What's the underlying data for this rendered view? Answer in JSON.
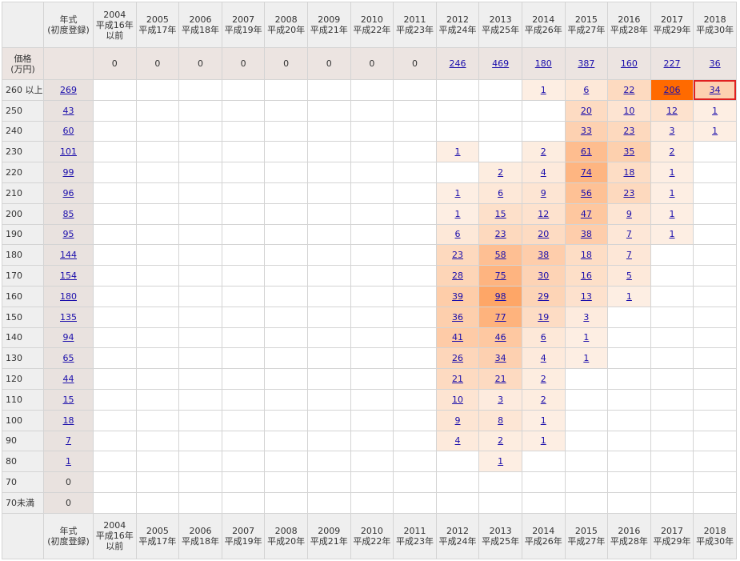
{
  "table": {
    "corner": "",
    "year_label": [
      "年式",
      "(初度登録)"
    ],
    "price_label": [
      "価格",
      "(万円)"
    ],
    "years": [
      [
        "2004",
        "平成16年",
        "以前"
      ],
      [
        "2005",
        "平成17年"
      ],
      [
        "2006",
        "平成18年"
      ],
      [
        "2007",
        "平成19年"
      ],
      [
        "2008",
        "平成20年"
      ],
      [
        "2009",
        "平成21年"
      ],
      [
        "2010",
        "平成22年"
      ],
      [
        "2011",
        "平成23年"
      ],
      [
        "2012",
        "平成24年"
      ],
      [
        "2013",
        "平成25年"
      ],
      [
        "2014",
        "平成26年"
      ],
      [
        "2015",
        "平成27年"
      ],
      [
        "2016",
        "平成28年"
      ],
      [
        "2017",
        "平成29年"
      ],
      [
        "2018",
        "平成30年"
      ]
    ],
    "year_totals": [
      0,
      0,
      0,
      0,
      0,
      0,
      0,
      0,
      246,
      469,
      180,
      387,
      160,
      227,
      36
    ],
    "rows": [
      {
        "price": "260 以上",
        "total": 269,
        "cells": [
          null,
          null,
          null,
          null,
          null,
          null,
          null,
          null,
          null,
          null,
          1,
          6,
          22,
          206,
          34
        ]
      },
      {
        "price": "250",
        "total": 43,
        "cells": [
          null,
          null,
          null,
          null,
          null,
          null,
          null,
          null,
          null,
          null,
          null,
          20,
          10,
          12,
          1
        ]
      },
      {
        "price": "240",
        "total": 60,
        "cells": [
          null,
          null,
          null,
          null,
          null,
          null,
          null,
          null,
          null,
          null,
          null,
          33,
          23,
          3,
          1
        ]
      },
      {
        "price": "230",
        "total": 101,
        "cells": [
          null,
          null,
          null,
          null,
          null,
          null,
          null,
          null,
          1,
          null,
          2,
          61,
          35,
          2,
          null
        ]
      },
      {
        "price": "220",
        "total": 99,
        "cells": [
          null,
          null,
          null,
          null,
          null,
          null,
          null,
          null,
          null,
          2,
          4,
          74,
          18,
          1,
          null
        ]
      },
      {
        "price": "210",
        "total": 96,
        "cells": [
          null,
          null,
          null,
          null,
          null,
          null,
          null,
          null,
          1,
          6,
          9,
          56,
          23,
          1,
          null
        ]
      },
      {
        "price": "200",
        "total": 85,
        "cells": [
          null,
          null,
          null,
          null,
          null,
          null,
          null,
          null,
          1,
          15,
          12,
          47,
          9,
          1,
          null
        ]
      },
      {
        "price": "190",
        "total": 95,
        "cells": [
          null,
          null,
          null,
          null,
          null,
          null,
          null,
          null,
          6,
          23,
          20,
          38,
          7,
          1,
          null
        ]
      },
      {
        "price": "180",
        "total": 144,
        "cells": [
          null,
          null,
          null,
          null,
          null,
          null,
          null,
          null,
          23,
          58,
          38,
          18,
          7,
          null,
          null
        ]
      },
      {
        "price": "170",
        "total": 154,
        "cells": [
          null,
          null,
          null,
          null,
          null,
          null,
          null,
          null,
          28,
          75,
          30,
          16,
          5,
          null,
          null
        ]
      },
      {
        "price": "160",
        "total": 180,
        "cells": [
          null,
          null,
          null,
          null,
          null,
          null,
          null,
          null,
          39,
          98,
          29,
          13,
          1,
          null,
          null
        ]
      },
      {
        "price": "150",
        "total": 135,
        "cells": [
          null,
          null,
          null,
          null,
          null,
          null,
          null,
          null,
          36,
          77,
          19,
          3,
          null,
          null,
          null
        ]
      },
      {
        "price": "140",
        "total": 94,
        "cells": [
          null,
          null,
          null,
          null,
          null,
          null,
          null,
          null,
          41,
          46,
          6,
          1,
          null,
          null,
          null
        ]
      },
      {
        "price": "130",
        "total": 65,
        "cells": [
          null,
          null,
          null,
          null,
          null,
          null,
          null,
          null,
          26,
          34,
          4,
          1,
          null,
          null,
          null
        ]
      },
      {
        "price": "120",
        "total": 44,
        "cells": [
          null,
          null,
          null,
          null,
          null,
          null,
          null,
          null,
          21,
          21,
          2,
          null,
          null,
          null,
          null
        ]
      },
      {
        "price": "110",
        "total": 15,
        "cells": [
          null,
          null,
          null,
          null,
          null,
          null,
          null,
          null,
          10,
          3,
          2,
          null,
          null,
          null,
          null
        ]
      },
      {
        "price": "100",
        "total": 18,
        "cells": [
          null,
          null,
          null,
          null,
          null,
          null,
          null,
          null,
          9,
          8,
          1,
          null,
          null,
          null,
          null
        ]
      },
      {
        "price": "90",
        "total": 7,
        "cells": [
          null,
          null,
          null,
          null,
          null,
          null,
          null,
          null,
          4,
          2,
          1,
          null,
          null,
          null,
          null
        ]
      },
      {
        "price": "80",
        "total": 1,
        "cells": [
          null,
          null,
          null,
          null,
          null,
          null,
          null,
          null,
          null,
          1,
          null,
          null,
          null,
          null,
          null
        ]
      },
      {
        "price": "70",
        "total": 0,
        "cells": [
          null,
          null,
          null,
          null,
          null,
          null,
          null,
          null,
          null,
          null,
          null,
          null,
          null,
          null,
          null
        ]
      },
      {
        "price": "70未満",
        "total": 0,
        "cells": [
          null,
          null,
          null,
          null,
          null,
          null,
          null,
          null,
          null,
          null,
          null,
          null,
          null,
          null,
          null
        ]
      }
    ]
  }
}
